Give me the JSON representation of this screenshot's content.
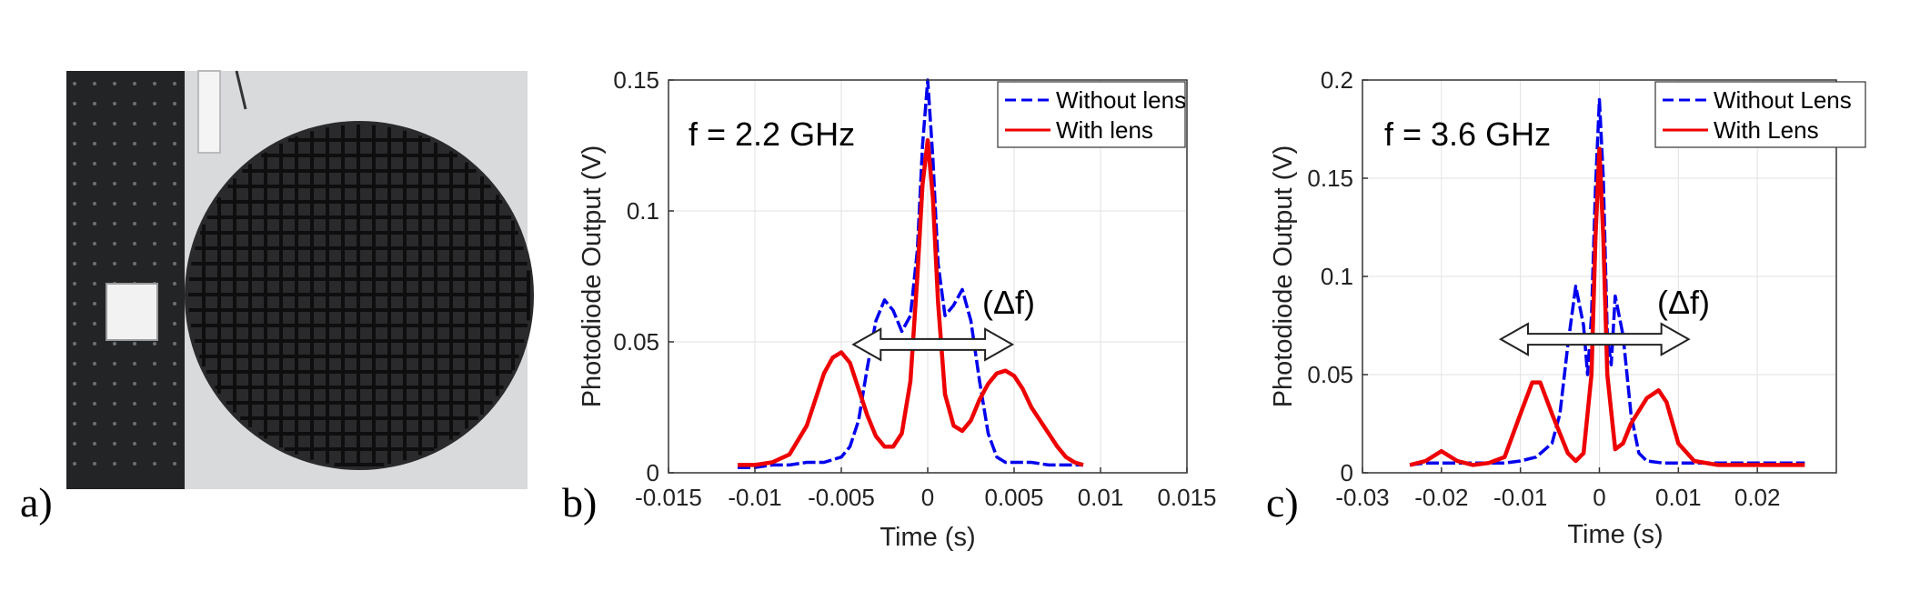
{
  "panel_labels": {
    "a": "a)",
    "b": "b)",
    "c": "c)"
  },
  "photo": {
    "description_icon": "photo-of-spherical-lattice-lens-on-optical-table"
  },
  "colors": {
    "without": "#0000ee",
    "with": "#ee0000",
    "grid": "#e2e2e2",
    "axis": "#333333"
  },
  "chart_data": [
    {
      "type": "line",
      "annotation": "f = 2.2 GHz",
      "delta_label": "(Δf)",
      "xlabel": "Time (s)",
      "ylabel": "Photodiode Output (V)",
      "xlim": [
        -0.015,
        0.015
      ],
      "ylim": [
        0,
        0.15
      ],
      "xticks": [
        -0.015,
        -0.01,
        -0.005,
        0,
        0.005,
        0.01,
        0.015
      ],
      "xtick_labels": [
        "-0.015",
        "-0.01",
        "-0.005",
        "0",
        "0.005",
        "0.01",
        "0.015"
      ],
      "yticks": [
        0,
        0.05,
        0.1,
        0.15
      ],
      "ytick_labels": [
        "0",
        "0.05",
        "0.1",
        "0.15"
      ],
      "grid": true,
      "legend_position": "top-right",
      "arrow_range": [
        -0.0043,
        0.0049
      ],
      "arrow_y": 0.049,
      "series": [
        {
          "name": "Without lens",
          "style": "dashed",
          "x": [
            -0.011,
            -0.01,
            -0.009,
            -0.008,
            -0.007,
            -0.006,
            -0.005,
            -0.0045,
            -0.004,
            -0.0035,
            -0.003,
            -0.0025,
            -0.002,
            -0.0015,
            -0.001,
            -0.0006,
            -0.0003,
            0,
            0.0003,
            0.0006,
            0.001,
            0.0015,
            0.002,
            0.0025,
            0.003,
            0.0035,
            0.004,
            0.0045,
            0.005,
            0.006,
            0.007,
            0.008,
            0.009
          ],
          "y": [
            0.002,
            0.002,
            0.003,
            0.003,
            0.004,
            0.004,
            0.006,
            0.01,
            0.02,
            0.04,
            0.058,
            0.066,
            0.062,
            0.054,
            0.06,
            0.085,
            0.125,
            0.15,
            0.12,
            0.08,
            0.06,
            0.064,
            0.07,
            0.058,
            0.035,
            0.015,
            0.006,
            0.004,
            0.004,
            0.004,
            0.003,
            0.003,
            0.003
          ]
        },
        {
          "name": "With lens",
          "style": "solid",
          "x": [
            -0.011,
            -0.01,
            -0.009,
            -0.008,
            -0.007,
            -0.0065,
            -0.006,
            -0.0055,
            -0.005,
            -0.0045,
            -0.004,
            -0.0035,
            -0.003,
            -0.0025,
            -0.002,
            -0.0015,
            -0.001,
            -0.0006,
            -0.0003,
            0,
            0.0003,
            0.0006,
            0.001,
            0.0015,
            0.002,
            0.0025,
            0.003,
            0.0035,
            0.004,
            0.0045,
            0.005,
            0.0055,
            0.006,
            0.0065,
            0.007,
            0.0075,
            0.008,
            0.0085,
            0.009
          ],
          "y": [
            0.003,
            0.003,
            0.004,
            0.007,
            0.018,
            0.028,
            0.038,
            0.044,
            0.046,
            0.042,
            0.032,
            0.022,
            0.014,
            0.01,
            0.01,
            0.015,
            0.035,
            0.075,
            0.11,
            0.127,
            0.105,
            0.065,
            0.03,
            0.018,
            0.016,
            0.02,
            0.028,
            0.034,
            0.038,
            0.039,
            0.037,
            0.032,
            0.025,
            0.02,
            0.015,
            0.01,
            0.006,
            0.004,
            0.003
          ]
        }
      ]
    },
    {
      "type": "line",
      "annotation": "f = 3.6 GHz",
      "delta_label": "(Δf)",
      "xlabel": "Time (s)",
      "ylabel": "Photodiode Output (V)",
      "xlim": [
        -0.03,
        0.03
      ],
      "ylim": [
        0,
        0.2
      ],
      "xticks": [
        -0.03,
        -0.02,
        -0.01,
        0,
        0.01,
        0.02
      ],
      "xtick_labels": [
        "-0.03",
        "-0.02",
        "-0.01",
        "0",
        "0.01",
        "0.02"
      ],
      "yticks": [
        0,
        0.05,
        0.1,
        0.15,
        0.2
      ],
      "ytick_labels": [
        "0",
        "0.05",
        "0.1",
        "0.15",
        "0.2"
      ],
      "grid": true,
      "legend_position": "top-right",
      "arrow_range": [
        -0.0125,
        0.0113
      ],
      "arrow_y": 0.068,
      "series": [
        {
          "name": "Without Lens",
          "style": "dashed",
          "x": [
            -0.024,
            -0.022,
            -0.02,
            -0.018,
            -0.015,
            -0.012,
            -0.01,
            -0.008,
            -0.006,
            -0.005,
            -0.004,
            -0.003,
            -0.002,
            -0.0015,
            -0.001,
            -0.0005,
            0,
            0.0005,
            0.001,
            0.0015,
            0.002,
            0.003,
            0.004,
            0.005,
            0.006,
            0.008,
            0.01,
            0.015,
            0.02,
            0.026
          ],
          "y": [
            0.004,
            0.005,
            0.005,
            0.005,
            0.005,
            0.005,
            0.006,
            0.008,
            0.015,
            0.03,
            0.065,
            0.095,
            0.075,
            0.05,
            0.08,
            0.145,
            0.19,
            0.15,
            0.07,
            0.055,
            0.09,
            0.07,
            0.03,
            0.01,
            0.006,
            0.005,
            0.005,
            0.005,
            0.005,
            0.005
          ]
        },
        {
          "name": "With Lens",
          "style": "solid",
          "x": [
            -0.024,
            -0.022,
            -0.02,
            -0.018,
            -0.016,
            -0.014,
            -0.012,
            -0.01,
            -0.0085,
            -0.0075,
            -0.006,
            -0.004,
            -0.003,
            -0.002,
            -0.001,
            -0.0005,
            0,
            0.0005,
            0.001,
            0.002,
            0.003,
            0.004,
            0.006,
            0.0075,
            0.0085,
            0.01,
            0.012,
            0.015,
            0.02,
            0.026
          ],
          "y": [
            0.004,
            0.006,
            0.011,
            0.006,
            0.004,
            0.005,
            0.008,
            0.03,
            0.046,
            0.046,
            0.03,
            0.01,
            0.006,
            0.01,
            0.05,
            0.12,
            0.165,
            0.12,
            0.05,
            0.012,
            0.015,
            0.025,
            0.038,
            0.042,
            0.036,
            0.015,
            0.006,
            0.004,
            0.004,
            0.004
          ]
        }
      ]
    }
  ]
}
